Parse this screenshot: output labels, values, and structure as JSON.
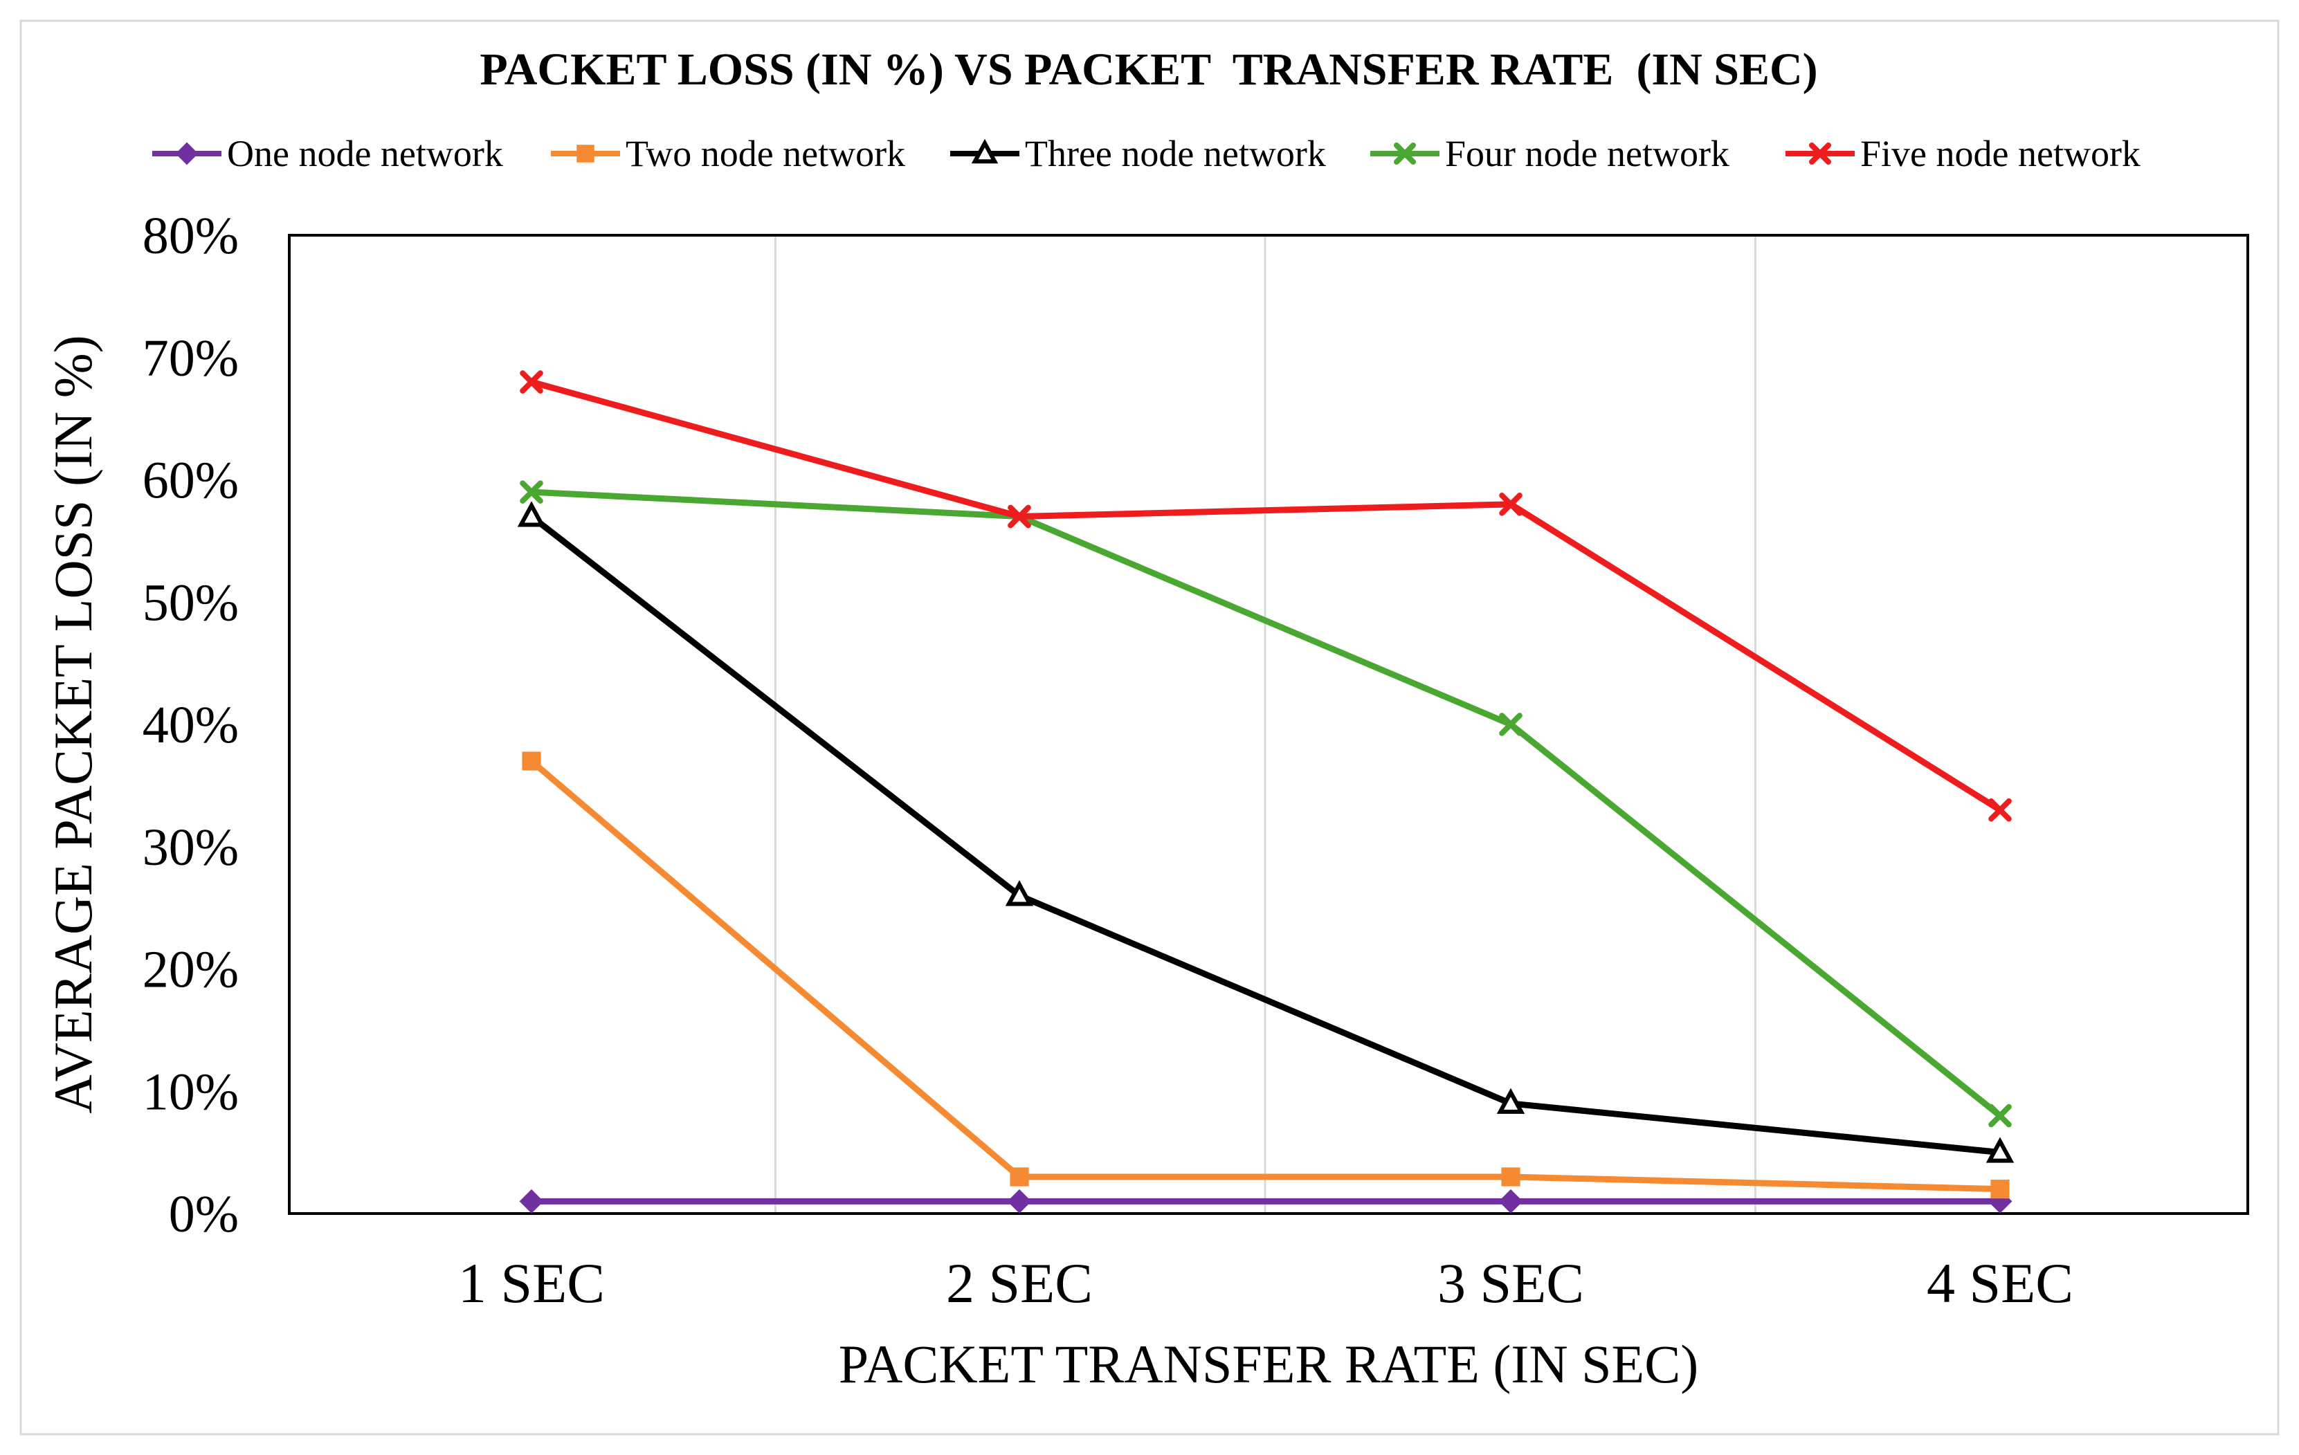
{
  "chart_data": {
    "type": "line",
    "title": "PACKET LOSS (IN %) VS PACKET  TRANSFER RATE  (IN SEC)",
    "xlabel": "PACKET TRANSFER RATE (IN SEC)",
    "ylabel": "AVERAGE PACKET LOSS (IN %)",
    "categories": [
      "1 SEC",
      "2 SEC",
      "3 SEC",
      "4 SEC"
    ],
    "ylim": [
      0,
      80
    ],
    "yticks": [
      0,
      10,
      20,
      30,
      40,
      50,
      60,
      70,
      80
    ],
    "ytick_labels": [
      "0%",
      "10%",
      "20%",
      "30%",
      "40%",
      "50%",
      "60%",
      "70%",
      "80%"
    ],
    "grid": "vertical",
    "legend_position": "top",
    "series": [
      {
        "name": "One node network",
        "values": [
          1,
          1,
          1,
          1
        ],
        "color": "#7030a0",
        "marker": "diamond"
      },
      {
        "name": "Two node network",
        "values": [
          37,
          3,
          3,
          2
        ],
        "color": "#f58a33",
        "marker": "square"
      },
      {
        "name": "Three node network",
        "values": [
          57,
          26,
          9,
          5
        ],
        "color": "#000000",
        "marker": "triangle"
      },
      {
        "name": "Four node network",
        "values": [
          59,
          57,
          40,
          8
        ],
        "color": "#4aa832",
        "marker": "x"
      },
      {
        "name": "Five node network",
        "values": [
          68,
          57,
          58,
          33
        ],
        "color": "#ee1c1c",
        "marker": "x"
      }
    ]
  }
}
